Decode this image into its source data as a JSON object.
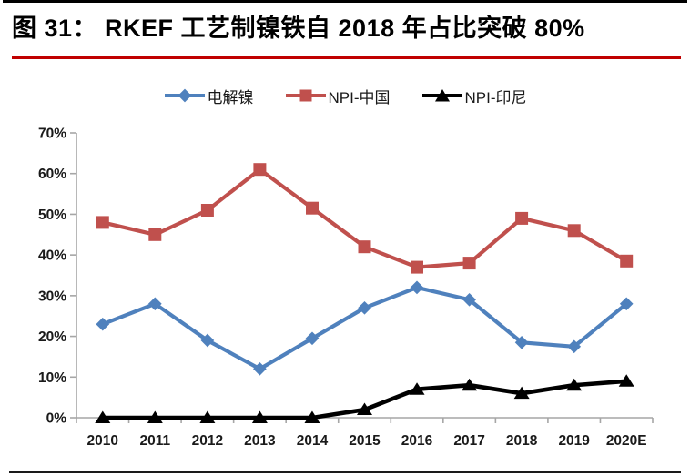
{
  "header": {
    "title": "图 31： RKEF 工艺制镍铁自 2018 年占比突破 80%"
  },
  "colors": {
    "top_rule": "#000000",
    "title_rule": "#C00000",
    "bottom_rule": "#1a1a1a",
    "axis": "#A6A6A6",
    "label_text": "#1a1a1a"
  },
  "chart_data": {
    "type": "line",
    "title": "图 31： RKEF 工艺制镍铁自 2018 年占比突破 80%",
    "categories": [
      "2010",
      "2011",
      "2012",
      "2013",
      "2014",
      "2015",
      "2016",
      "2017",
      "2018",
      "2019",
      "2020E"
    ],
    "series": [
      {
        "name": "电解镍",
        "color": "#4F81BD",
        "marker": "diamond",
        "values": [
          23,
          28,
          19,
          12,
          19.5,
          27,
          32,
          29,
          18.5,
          17.5,
          28
        ]
      },
      {
        "name": "NPI-中国",
        "color": "#C0504D",
        "marker": "square",
        "values": [
          48,
          45,
          51,
          61,
          51.5,
          42,
          37,
          38,
          49,
          46,
          38.5
        ]
      },
      {
        "name": "NPI-印尼",
        "color": "#000000",
        "marker": "triangle",
        "values": [
          0,
          0,
          0,
          0,
          0,
          2,
          7,
          8,
          6,
          8,
          9
        ]
      }
    ],
    "xlabel": "",
    "ylabel": "",
    "ylim": [
      0,
      70
    ],
    "ytick_step": 10,
    "ytick_suffix": "%",
    "grid": false,
    "legend_position": "top"
  }
}
